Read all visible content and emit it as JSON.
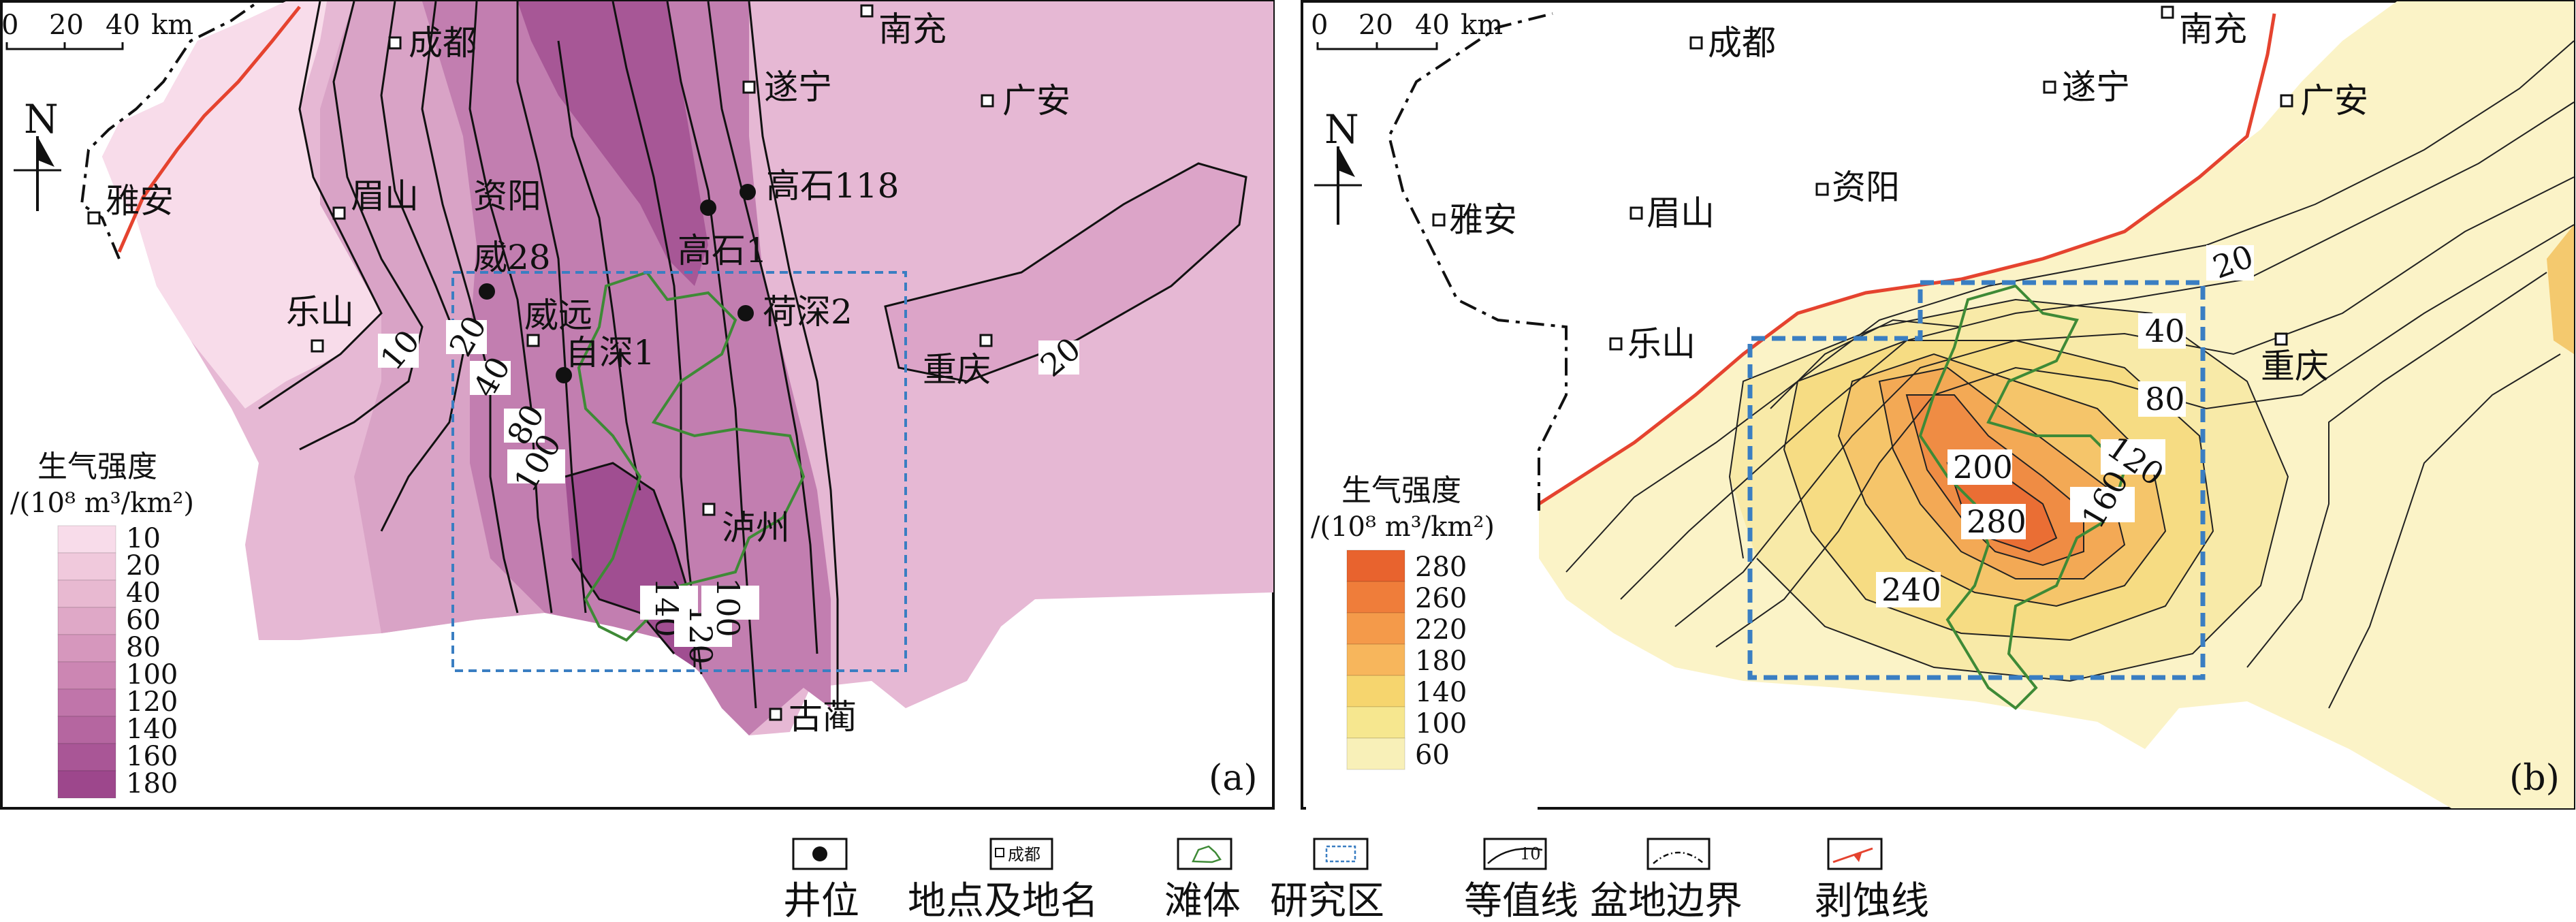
{
  "panel_a": {
    "scale": {
      "labels": [
        "0",
        "20",
        "40",
        "km"
      ]
    },
    "north": "N",
    "cities": {
      "chengdu": "成都",
      "nanchong": "南充",
      "suining": "遂宁",
      "guangan": "广安",
      "yaan": "雅安",
      "meishan": "眉山",
      "ziyang": "资阳",
      "leshan": "乐山",
      "weiyuan": "威远",
      "chongqing": "重庆",
      "luzhou": "泸州",
      "gulin": "古蔺"
    },
    "wells": {
      "gaoshi118": "高石118",
      "gaoshi1": "高石1",
      "wei28": "威28",
      "heshen2": "荷深2",
      "zishen1": "自深1"
    },
    "contour_values": {
      "c10": "10",
      "c20": "20",
      "c40": "40",
      "c80": "80",
      "c100": "100",
      "c140": "140",
      "c120": "120",
      "c100b": "100",
      "c20e": "20"
    },
    "legend": {
      "title": "生气强度",
      "unit": "/(10⁸ m³/km²)",
      "values": [
        "10",
        "20",
        "40",
        "60",
        "80",
        "100",
        "120",
        "140",
        "160",
        "180"
      ],
      "colors": [
        "#f8dcea",
        "#f0c9dc",
        "#e8b9d1",
        "#dfa8c7",
        "#d697bd",
        "#cc86b3",
        "#c075aa",
        "#b566a0",
        "#a95696",
        "#9d478c"
      ]
    },
    "panel_label": "(a)"
  },
  "panel_b": {
    "scale": {
      "labels": [
        "0",
        "20",
        "40",
        "km"
      ]
    },
    "north": "N",
    "cities": {
      "chengdu": "成都",
      "nanchong": "南充",
      "suining": "遂宁",
      "guangan": "广安",
      "yaan": "雅安",
      "meishan": "眉山",
      "ziyang": "资阳",
      "leshan": "乐山",
      "chongqing": "重庆"
    },
    "contour_values": {
      "c20": "20",
      "c40": "40",
      "c80": "80",
      "c120": "120",
      "c160": "160",
      "c200": "200",
      "c280": "280",
      "c240": "240"
    },
    "legend": {
      "title": "生气强度",
      "unit": "/(10⁸ m³/km²)",
      "values": [
        "280",
        "260",
        "220",
        "180",
        "140",
        "100",
        "60"
      ],
      "colors": [
        "#e8632e",
        "#ef7d3a",
        "#f49a4a",
        "#f7b65c",
        "#f6d56e",
        "#f6e78f",
        "#f8f0b8"
      ]
    },
    "panel_label": "(b)"
  },
  "bottom_legend": {
    "well": "井位",
    "place": "地点及地名",
    "place_sample": "成都",
    "shoal": "滩体",
    "study_area": "研究区",
    "isoline": "等值线",
    "isoline_sample": "10",
    "basin_boundary": "盆地边界",
    "erosion_line": "剥蚀线"
  },
  "colors": {
    "erosion": "#e5432f",
    "shoal": "#3e8a36",
    "study_area": "#3a7ec2",
    "purple_base": "#e6b8d4",
    "yellow_base": "#fbf3c7"
  }
}
